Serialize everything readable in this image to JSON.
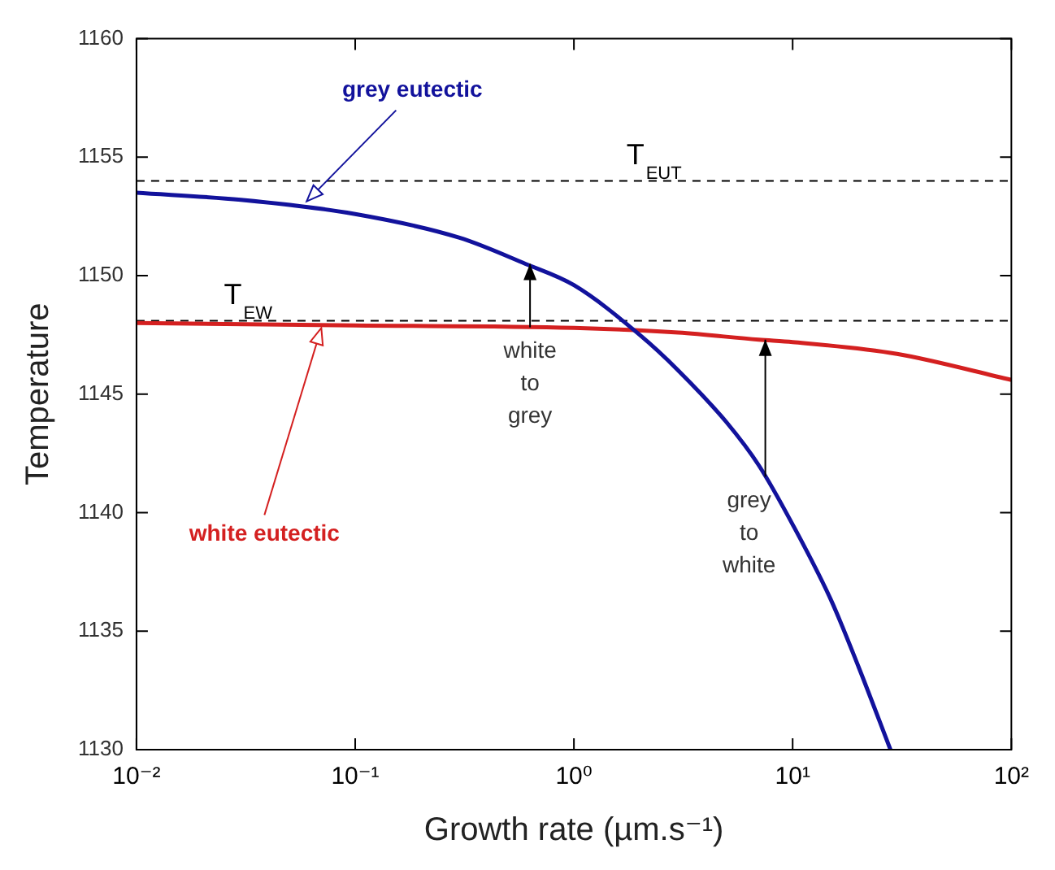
{
  "chart_data": {
    "type": "line",
    "xlabel": "Growth rate (µm.s⁻¹)",
    "ylabel": "Temperature",
    "log": "x",
    "xlim": [
      0.01,
      100
    ],
    "xticks": [
      {
        "value": 0.01,
        "label": "10⁻²"
      },
      {
        "value": 0.1,
        "label": "10⁻¹"
      },
      {
        "value": 1,
        "label": "10⁰"
      },
      {
        "value": 10,
        "label": "10¹"
      },
      {
        "value": 100,
        "label": "10²"
      }
    ],
    "ylim": [
      1130,
      1160
    ],
    "yticks": [
      1130,
      1135,
      1140,
      1145,
      1150,
      1155,
      1160
    ],
    "grid": false,
    "legend": false,
    "marker": "none",
    "line_style": "solid",
    "series": [
      {
        "color": "#12129c",
        "x": [
          0.01,
          0.03,
          0.1,
          0.3,
          0.6,
          1,
          2,
          3,
          5,
          7,
          10,
          15,
          20,
          28
        ],
        "values": [
          1153.5,
          1153.2,
          1152.6,
          1151.6,
          1150.5,
          1149.6,
          1147.5,
          1146,
          1143.8,
          1142,
          1139.5,
          1136.3,
          1133.5,
          1130
        ]
      },
      {
        "color": "#d42020",
        "x": [
          0.01,
          0.1,
          1,
          3,
          7,
          10,
          30,
          100
        ],
        "values": [
          1148,
          1147.9,
          1147.8,
          1147.6,
          1147.3,
          1147.2,
          1146.7,
          1145.6
        ]
      }
    ],
    "ref_lines": [
      {
        "axis": "y",
        "value": 1154,
        "label": "T$_{EUT}$",
        "line_style": "dashed",
        "color": "#000000"
      },
      {
        "axis": "y",
        "value": 1148.1,
        "label": "T$_{EW}$",
        "line_style": "dashed",
        "color": "#000000"
      }
    ],
    "annotations": [
      {
        "text": "grey eutectic",
        "x": 0.06,
        "y": 1153
      },
      {
        "text": "white eutectic",
        "x": 0.07,
        "y": 1148
      },
      {
        "text": "white to grey",
        "x": 0.63,
        "y": 1150.5
      },
      {
        "text": "grey to white",
        "x": 7.5,
        "y": 1147.3
      }
    ]
  }
}
